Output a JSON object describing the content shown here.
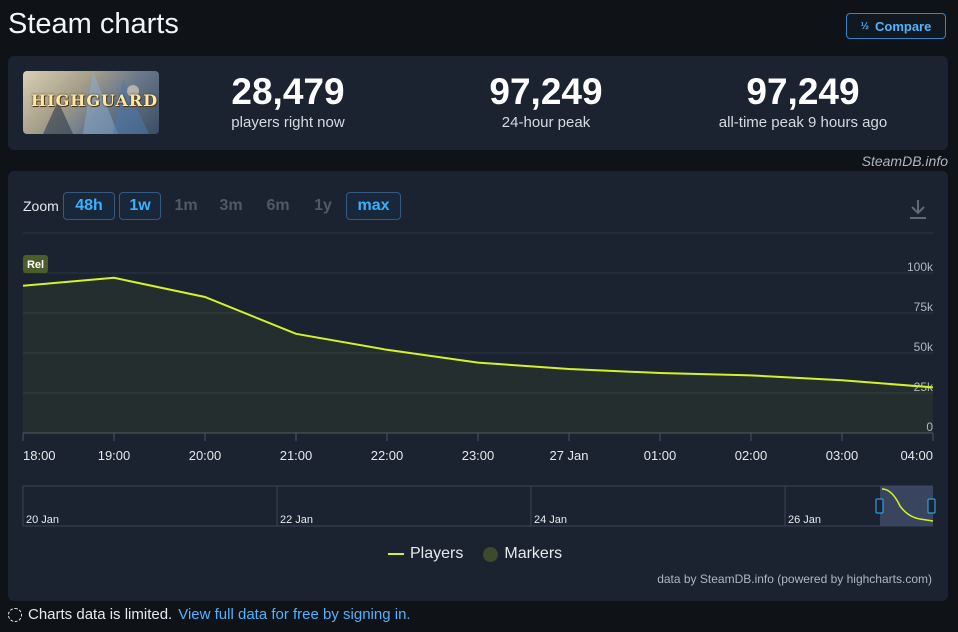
{
  "page": {
    "title": "Steam charts",
    "compare_label": "Compare",
    "compare_icon": "½⅓"
  },
  "stats": {
    "logo_text": "HIGHGUARD",
    "players_now": {
      "value": "28,479",
      "label": "players right now"
    },
    "peak_24h": {
      "value": "97,249",
      "label": "24-hour peak"
    },
    "all_time_peak": {
      "value": "97,249",
      "label": "all-time peak 9 hours ago"
    },
    "credit": "SteamDB.info"
  },
  "zoom": {
    "label": "Zoom",
    "options": [
      {
        "label": "48h",
        "state": "active"
      },
      {
        "label": "1w",
        "state": "active"
      },
      {
        "label": "1m",
        "state": "inactive"
      },
      {
        "label": "3m",
        "state": "inactive"
      },
      {
        "label": "6m",
        "state": "inactive"
      },
      {
        "label": "1y",
        "state": "inactive"
      },
      {
        "label": "max",
        "state": "active"
      }
    ]
  },
  "chart_data": {
    "type": "area",
    "series": [
      {
        "name": "Players",
        "color": "#d4f326",
        "x": [
          "17:45",
          "19:00",
          "20:00",
          "21:00",
          "22:00",
          "23:00",
          "00:00",
          "01:00",
          "02:00",
          "03:00",
          "04:15"
        ],
        "values": [
          92000,
          97000,
          85000,
          62000,
          52000,
          44000,
          40000,
          37500,
          36000,
          33000,
          28479
        ]
      }
    ],
    "x_tick_labels": [
      "18:00",
      "19:00",
      "20:00",
      "21:00",
      "22:00",
      "23:00",
      "27 Jan",
      "01:00",
      "02:00",
      "03:00",
      "04:00"
    ],
    "y_tick_labels": [
      "0",
      "25k",
      "50k",
      "75k",
      "100k"
    ],
    "ylim": [
      0,
      100000
    ],
    "grid": true,
    "marker_label": "Rel",
    "legend": [
      "Players",
      "Markers"
    ],
    "legend_position": "bottom-center",
    "navigator_labels": [
      "20 Jan",
      "22 Jan",
      "24 Jan",
      "26 Jan"
    ]
  },
  "legend": {
    "players": "Players",
    "markers": "Markers"
  },
  "chart_credits": "data by SteamDB.info (powered by highcharts.com)",
  "footer": {
    "text": "Charts data is limited.",
    "link": "View full data for free by signing in."
  }
}
